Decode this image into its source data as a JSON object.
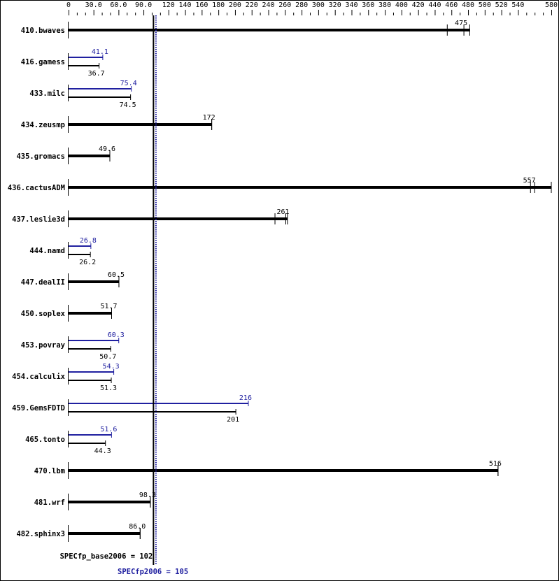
{
  "chart_data": {
    "type": "bar",
    "orientation": "horizontal",
    "axis_ticks": [
      "0",
      "30.0",
      "60.0",
      "90.0",
      "120",
      "140",
      "160",
      "180",
      "200",
      "220",
      "240",
      "260",
      "280",
      "300",
      "320",
      "340",
      "360",
      "380",
      "400",
      "420",
      "440",
      "460",
      "480",
      "500",
      "520",
      "540",
      "580"
    ],
    "xlim": [
      0,
      580
    ],
    "colors": {
      "base": "#000000",
      "peak": "#2020a0"
    },
    "benchmarks": [
      {
        "name": "410.bwaves",
        "base": 475,
        "base_label": "475",
        "runs": [
          455,
          475,
          482
        ]
      },
      {
        "name": "416.gamess",
        "base": 36.7,
        "base_label": "36.7",
        "peak": 41.1,
        "peak_label": "41.1"
      },
      {
        "name": "433.milc",
        "base": 74.5,
        "base_label": "74.5",
        "peak": 75.4,
        "peak_label": "75.4"
      },
      {
        "name": "434.zeusmp",
        "base": 172,
        "base_label": "172"
      },
      {
        "name": "435.gromacs",
        "base": 49.6,
        "base_label": "49.6"
      },
      {
        "name": "436.cactusADM",
        "base": 557,
        "base_label": "557",
        "runs": [
          555,
          560,
          580
        ]
      },
      {
        "name": "437.leslie3d",
        "base": 261,
        "base_label": "261",
        "runs": [
          248,
          261,
          263
        ]
      },
      {
        "name": "444.namd",
        "base": 26.2,
        "base_label": "26.2",
        "peak": 26.8,
        "peak_label": "26.8"
      },
      {
        "name": "447.dealII",
        "base": 60.5,
        "base_label": "60.5"
      },
      {
        "name": "450.soplex",
        "base": 51.7,
        "base_label": "51.7"
      },
      {
        "name": "453.povray",
        "base": 50.7,
        "base_label": "50.7",
        "peak": 60.3,
        "peak_label": "60.3"
      },
      {
        "name": "454.calculix",
        "base": 51.3,
        "base_label": "51.3",
        "peak": 54.3,
        "peak_label": "54.3"
      },
      {
        "name": "459.GemsFDTD",
        "base": 201,
        "base_label": "201",
        "peak": 216,
        "peak_label": "216"
      },
      {
        "name": "465.tonto",
        "base": 44.3,
        "base_label": "44.3",
        "peak": 51.6,
        "peak_label": "51.6"
      },
      {
        "name": "470.lbm",
        "base": 516,
        "base_label": "516"
      },
      {
        "name": "481.wrf",
        "base": 98.3,
        "base_label": "98.3"
      },
      {
        "name": "482.sphinx3",
        "base": 86.0,
        "base_label": "86.0"
      }
    ],
    "base_score": 102,
    "peak_score": 105,
    "base_score_label": "SPECfp_base2006 = 102",
    "peak_score_label": "SPECfp2006 = 105"
  }
}
